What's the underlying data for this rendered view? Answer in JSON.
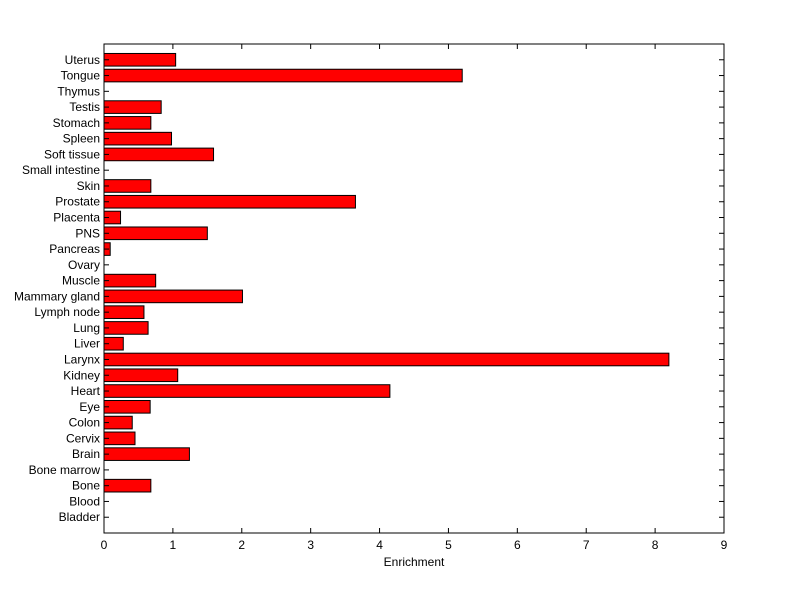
{
  "chart_data": {
    "type": "bar",
    "orientation": "horizontal",
    "title": "",
    "xlabel": "Enrichment",
    "ylabel": "",
    "xlim": [
      0,
      9
    ],
    "x_ticks": [
      0,
      1,
      2,
      3,
      4,
      5,
      6,
      7,
      8,
      9
    ],
    "grid": false,
    "legend": "none",
    "bar_color": "#ff0000",
    "bar_edge_color": "#000000",
    "categories": [
      "Bladder",
      "Blood",
      "Bone",
      "Bone marrow",
      "Brain",
      "Cervix",
      "Colon",
      "Eye",
      "Heart",
      "Kidney",
      "Larynx",
      "Liver",
      "Lung",
      "Lymph node",
      "Mammary gland",
      "Muscle",
      "Ovary",
      "Pancreas",
      "PNS",
      "Placenta",
      "Prostate",
      "Skin",
      "Small intestine",
      "Soft tissue",
      "Spleen",
      "Stomach",
      "Testis",
      "Thymus",
      "Tongue",
      "Uterus"
    ],
    "values": [
      0,
      0,
      0.68,
      0,
      1.24,
      0.45,
      0.41,
      0.67,
      4.15,
      1.07,
      8.2,
      0.28,
      0.64,
      0.58,
      2.01,
      0.75,
      0,
      0.09,
      1.5,
      0.24,
      3.65,
      0.68,
      0,
      1.59,
      0.98,
      0.68,
      0.83,
      0,
      5.2,
      1.04
    ]
  }
}
